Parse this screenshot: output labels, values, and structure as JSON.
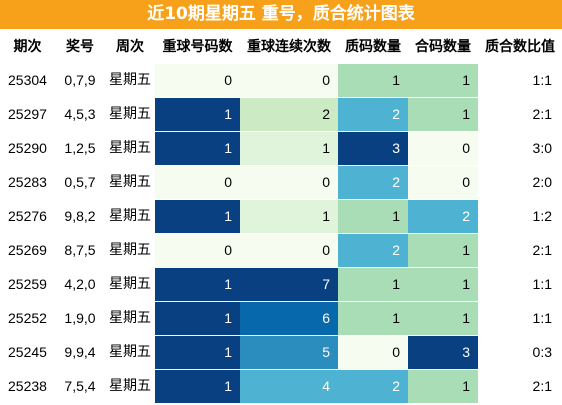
{
  "title": "近10期星期五 重号，质合统计图表",
  "colors": {
    "title_bg": "#f7a11a",
    "title_text": "#ffffff",
    "scale": [
      "#f7fcf0",
      "#e0f3db",
      "#ccebc5",
      "#a8ddb5",
      "#7bccc4",
      "#4eb3d3",
      "#2b8cbe",
      "#0868ac",
      "#084081"
    ]
  },
  "chart_data": {
    "type": "table",
    "title": "近10期星期五 重号，质合统计图表",
    "columns": [
      "期次",
      "奖号",
      "周次",
      "重球号码数",
      "重球连续次数",
      "质码数量",
      "合码数量",
      "质合数比值"
    ],
    "rows": [
      {
        "issue": "25304",
        "numbers": "0,7,9",
        "weekday": "星期五",
        "repeat_count": 0,
        "repeat_streak": 0,
        "prime_count": 1,
        "composite_count": 1,
        "ratio": "1:1"
      },
      {
        "issue": "25297",
        "numbers": "4,5,3",
        "weekday": "星期五",
        "repeat_count": 1,
        "repeat_streak": 2,
        "prime_count": 2,
        "composite_count": 1,
        "ratio": "2:1"
      },
      {
        "issue": "25290",
        "numbers": "1,2,5",
        "weekday": "星期五",
        "repeat_count": 1,
        "repeat_streak": 1,
        "prime_count": 3,
        "composite_count": 0,
        "ratio": "3:0"
      },
      {
        "issue": "25283",
        "numbers": "0,5,7",
        "weekday": "星期五",
        "repeat_count": 0,
        "repeat_streak": 0,
        "prime_count": 2,
        "composite_count": 0,
        "ratio": "2:0"
      },
      {
        "issue": "25276",
        "numbers": "9,8,2",
        "weekday": "星期五",
        "repeat_count": 1,
        "repeat_streak": 1,
        "prime_count": 1,
        "composite_count": 2,
        "ratio": "1:2"
      },
      {
        "issue": "25269",
        "numbers": "8,7,5",
        "weekday": "星期五",
        "repeat_count": 0,
        "repeat_streak": 0,
        "prime_count": 2,
        "composite_count": 1,
        "ratio": "2:1"
      },
      {
        "issue": "25259",
        "numbers": "4,2,0",
        "weekday": "星期五",
        "repeat_count": 1,
        "repeat_streak": 7,
        "prime_count": 1,
        "composite_count": 1,
        "ratio": "1:1"
      },
      {
        "issue": "25252",
        "numbers": "1,9,0",
        "weekday": "星期五",
        "repeat_count": 1,
        "repeat_streak": 6,
        "prime_count": 1,
        "composite_count": 1,
        "ratio": "1:1"
      },
      {
        "issue": "25245",
        "numbers": "9,9,4",
        "weekday": "星期五",
        "repeat_count": 1,
        "repeat_streak": 5,
        "prime_count": 0,
        "composite_count": 3,
        "ratio": "0:3"
      },
      {
        "issue": "25238",
        "numbers": "7,5,4",
        "weekday": "星期五",
        "repeat_count": 1,
        "repeat_streak": 4,
        "prime_count": 2,
        "composite_count": 1,
        "ratio": "2:1"
      }
    ]
  }
}
